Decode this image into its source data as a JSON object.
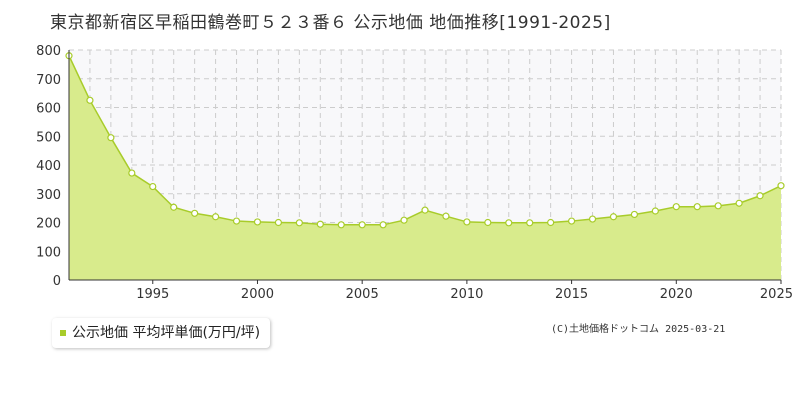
{
  "chart_data": {
    "type": "area",
    "title": "東京都新宿区早稲田鶴巻町５２３番６ 公示地価 地価推移[1991-2025]",
    "x": [
      1991,
      1992,
      1993,
      1994,
      1995,
      1996,
      1997,
      1998,
      1999,
      2000,
      2001,
      2002,
      2003,
      2004,
      2005,
      2006,
      2007,
      2008,
      2009,
      2010,
      2011,
      2012,
      2013,
      2014,
      2015,
      2016,
      2017,
      2018,
      2019,
      2020,
      2021,
      2022,
      2023,
      2024,
      2025
    ],
    "series": [
      {
        "name": "公示地価 平均坪単価(万円/坪)",
        "values": [
          780,
          625,
          495,
          372,
          325,
          253,
          232,
          220,
          205,
          202,
          200,
          199,
          194,
          192,
          192,
          192,
          208,
          243,
          222,
          202,
          200,
          199,
          199,
          200,
          205,
          212,
          220,
          228,
          240,
          255,
          255,
          258,
          267,
          293,
          328
        ]
      }
    ],
    "xticks": [
      "1995",
      "2000",
      "2005",
      "2010",
      "2015",
      "2020",
      "2025"
    ],
    "yticks": [
      "0",
      "100",
      "200",
      "300",
      "400",
      "500",
      "600",
      "700",
      "800"
    ],
    "xlim": [
      1991,
      2025
    ],
    "ylim": [
      0,
      800
    ],
    "grid": true,
    "legend_position": "bottom-left",
    "colors": {
      "line": "#a8cc2a",
      "fill": "#d8eb8c",
      "marker_fill": "#ffffff",
      "grid": "#cccccc"
    }
  },
  "legend": {
    "label": "公示地価 平均坪単価(万円/坪)"
  },
  "copyright": "(C)土地価格ドットコム 2025-03-21"
}
